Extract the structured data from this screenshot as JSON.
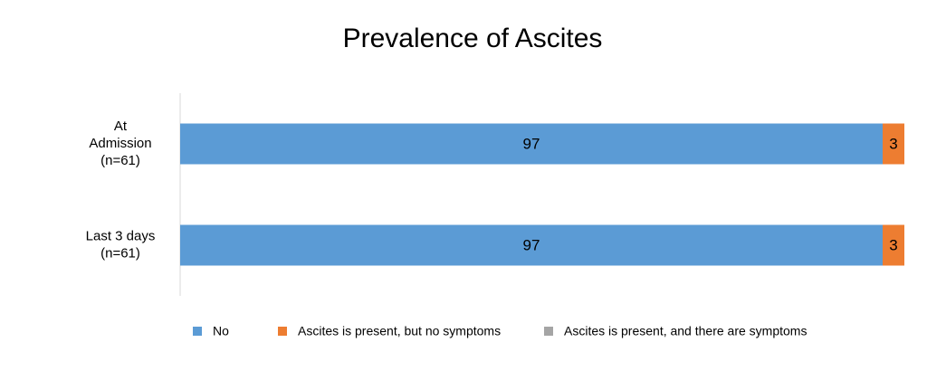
{
  "chart_data": {
    "type": "stacked-bar-horizontal",
    "title": "Prevalence of Ascites",
    "categories": [
      "At\nAdmission\n(n=61)",
      "Last 3 days\n(n=61)"
    ],
    "series": [
      {
        "name": "No",
        "color": "#5b9bd5",
        "values": [
          97,
          97
        ]
      },
      {
        "name": "Ascites is present, but no symptoms",
        "color": "#ed7d31",
        "values": [
          3,
          3
        ]
      },
      {
        "name": "Ascites is present, and there are symptoms",
        "color": "#a5a5a5",
        "values": [
          0,
          0
        ]
      }
    ],
    "xlim": [
      0,
      100
    ]
  }
}
